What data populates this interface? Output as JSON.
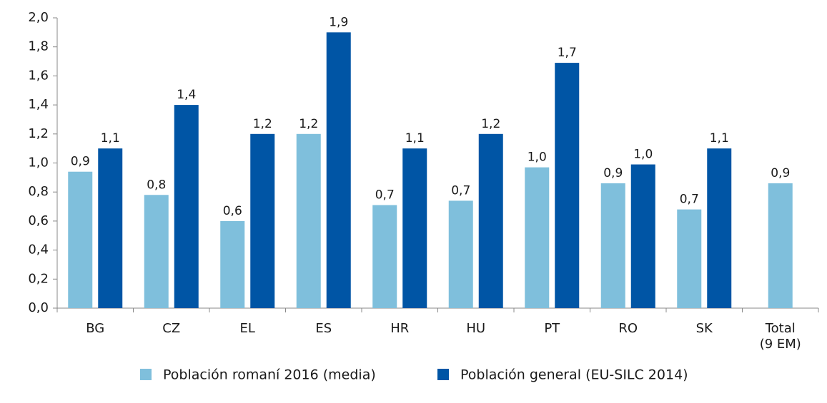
{
  "chart_data": {
    "type": "bar",
    "categories": [
      "BG",
      "CZ",
      "EL",
      "ES",
      "HR",
      "HU",
      "PT",
      "RO",
      "SK",
      "Total\n(9 EM)"
    ],
    "series": [
      {
        "name": "Población romaní 2016 (media)",
        "color": "#7fbfdc",
        "values": [
          0.94,
          0.78,
          0.6,
          1.2,
          0.71,
          0.74,
          0.97,
          0.86,
          0.68,
          0.86
        ],
        "value_labels": [
          "0,9",
          "0,8",
          "0,6",
          "1,2",
          "0,7",
          "0,7",
          "1,0",
          "0,9",
          "0,7",
          "0,9"
        ]
      },
      {
        "name": "Población general (EU-SILC 2014)",
        "color": "#0055a5",
        "values": [
          1.1,
          1.4,
          1.2,
          1.9,
          1.1,
          1.2,
          1.69,
          0.99,
          1.1,
          null
        ],
        "value_labels": [
          "1,1",
          "1,4",
          "1,2",
          "1,9",
          "1,1",
          "1,2",
          "1,7",
          "1,0",
          "1,1",
          null
        ]
      }
    ],
    "ylim": [
      0,
      2
    ],
    "yticks": [
      {
        "value": 0,
        "label": "0,0"
      },
      {
        "value": 0.2,
        "label": "0,2"
      },
      {
        "value": 0.4,
        "label": "0,4"
      },
      {
        "value": 0.6,
        "label": "0,6"
      },
      {
        "value": 0.8,
        "label": "0,8"
      },
      {
        "value": 1,
        "label": "1,0"
      },
      {
        "value": 1.2,
        "label": "1,2"
      },
      {
        "value": 1.4,
        "label": "1,4"
      },
      {
        "value": 1.6,
        "label": "1,6"
      },
      {
        "value": 1.8,
        "label": "1,8"
      },
      {
        "value": 2,
        "label": "2,0"
      }
    ],
    "legend": "bottom",
    "grid": false
  }
}
